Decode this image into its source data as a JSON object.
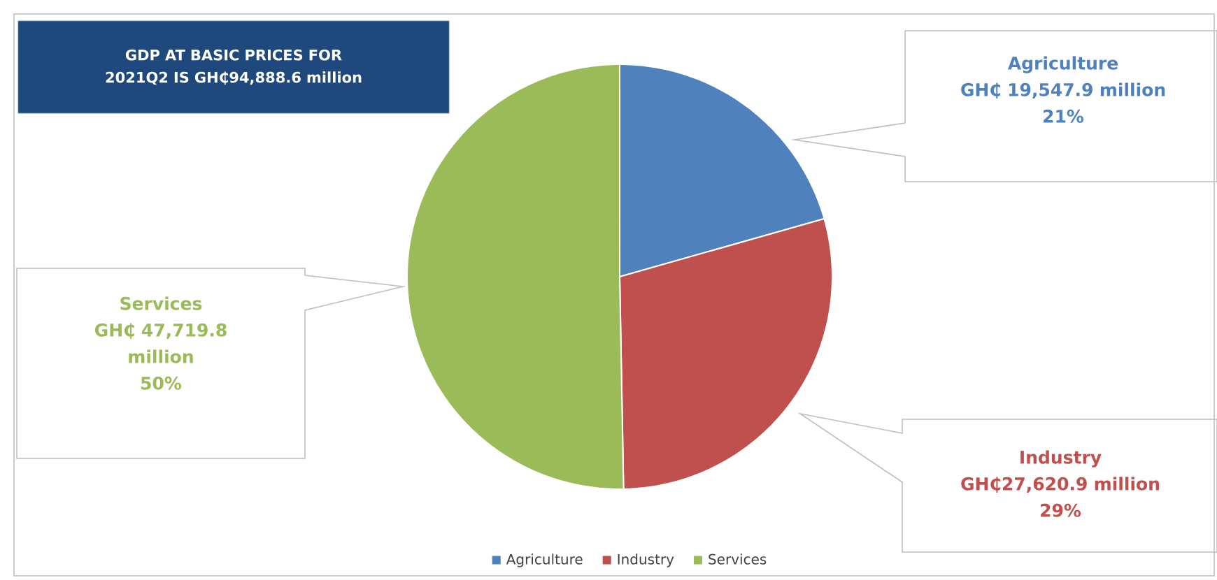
{
  "chart_data": {
    "type": "pie",
    "title": "GDP AT BASIC PRICES FOR 2021Q2 IS GH₵94,888.6 million",
    "categories": [
      "Agriculture",
      "Industry",
      "Services"
    ],
    "values": [
      19547.9,
      27620.9,
      47719.8
    ],
    "colors": [
      "#4f81bd",
      "#c0504d",
      "#9bbb59"
    ],
    "value_labels": [
      "GH₵ 19,547.9 million",
      "GH₵27,620.9 million",
      "GH₵ 47,719.8 million"
    ],
    "annotations": [
      "21%",
      "29%",
      "50%"
    ],
    "legend": "bottom"
  }
}
